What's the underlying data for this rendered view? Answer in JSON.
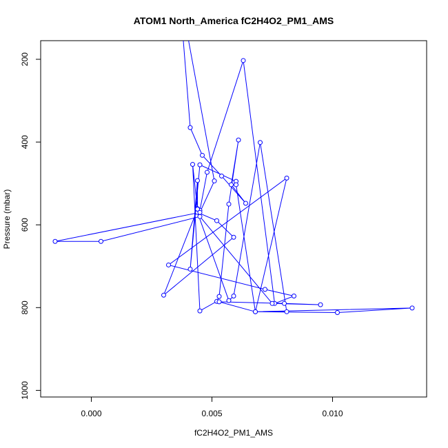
{
  "chart_data": {
    "type": "line",
    "title": "ATOM1 North_America fC2H4O2_PM1_AMS",
    "xlabel": "fC2H4O2_PM1_AMS",
    "ylabel": "Pressure (mbar)",
    "xlim": [
      -0.0021,
      0.0139
    ],
    "ylim": [
      1016,
      155
    ],
    "y_reversed": true,
    "grid": false,
    "legend": "none",
    "x_ticks": [
      {
        "value": 0.0,
        "label": "0.000"
      },
      {
        "value": 0.005,
        "label": "0.005"
      },
      {
        "value": 0.01,
        "label": "0.010"
      }
    ],
    "y_ticks": [
      {
        "value": 200,
        "label": "200"
      },
      {
        "value": 400,
        "label": "400"
      },
      {
        "value": 600,
        "label": "600"
      },
      {
        "value": 800,
        "label": "800"
      },
      {
        "value": 1000,
        "label": "1000"
      }
    ],
    "colors": {
      "series": "#0000ff",
      "axes": "#000000",
      "background": "#ffffff"
    },
    "marker": "open-circle",
    "series": [
      {
        "x": [
          0.0038,
          0.0041,
          0.0046,
          0.0054,
          0.0064,
          0.0058,
          0.0061,
          0.0057,
          0.0053,
          0.0052,
          0.0045,
          0.0042,
          0.0044,
          0.0045,
          0.0048,
          0.0063,
          0.0076,
          0.0084,
          0.0072,
          0.0032,
          0.0081,
          0.0068,
          0.0081,
          0.007,
          0.0059,
          0.0057,
          0.0044,
          0.0052,
          0.0059,
          0.003,
          0.0044,
          0.0044,
          0.0041,
          0.0045,
          0.006,
          0.006,
          0.0068,
          0.0102,
          0.0133,
          0.0068,
          0.0053,
          0.008,
          0.0095,
          0.0075,
          0.0045,
          0.0004,
          -0.0015,
          0.0045,
          0.0051,
          0.004
        ],
        "y": [
          145,
          365,
          432,
          482,
          548,
          503,
          395,
          550,
          773,
          785,
          808,
          454,
          561,
          565,
          473,
          203,
          790,
          772,
          756,
          697,
          487,
          810,
          810,
          401,
          772,
          783,
          570,
          590,
          630,
          770,
          562,
          493,
          707,
          455,
          495,
          503,
          810,
          812,
          801,
          810,
          786,
          790,
          793,
          790,
          580,
          640,
          640,
          570,
          494,
          145
        ]
      }
    ]
  }
}
